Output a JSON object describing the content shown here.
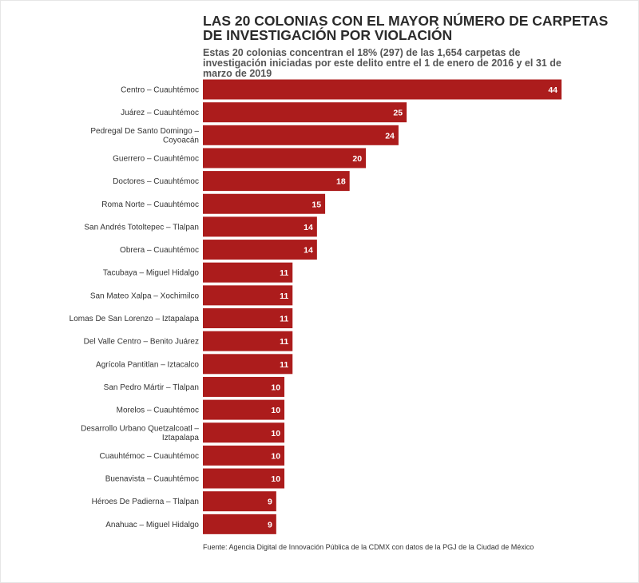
{
  "chart_data": {
    "type": "bar",
    "orientation": "horizontal",
    "title": "LAS 20 COLONIAS CON EL MAYOR NÚMERO DE CARPETAS DE INVESTIGACIÓN POR VIOLACIÓN",
    "subtitle": "Estas 20 colonias concentran el 18% (297) de las 1,654 carpetas de investigación iniciadas por este delito entre el 1 de enero de 2016 y el 31 de marzo de 2019",
    "source": "Fuente: Agencia Digital de Innovación Pública de la CDMX con datos de la PGJ de la Ciudad de México",
    "bar_color": "#ac1c1c",
    "xlim": [
      0,
      44
    ],
    "grid": false,
    "categories": [
      [
        "Centro – Cuauhtémoc"
      ],
      [
        "Juárez – Cuauhtémoc"
      ],
      [
        "Pedregal De Santo Domingo –",
        "Coyoacán"
      ],
      [
        "Guerrero – Cuauhtémoc"
      ],
      [
        "Doctores – Cuauhtémoc"
      ],
      [
        "Roma Norte – Cuauhtémoc"
      ],
      [
        "San Andrés Totoltepec – Tlalpan"
      ],
      [
        "Obrera – Cuauhtémoc"
      ],
      [
        "Tacubaya – Miguel Hidalgo"
      ],
      [
        "San Mateo Xalpa – Xochimilco"
      ],
      [
        "Lomas De San Lorenzo – Iztapalapa"
      ],
      [
        "Del Valle Centro – Benito Juárez"
      ],
      [
        "Agrícola Pantitlan – Iztacalco"
      ],
      [
        "San Pedro Mártir – Tlalpan"
      ],
      [
        "Morelos – Cuauhtémoc"
      ],
      [
        "Desarrollo Urbano Quetzalcoatl –",
        "Iztapalapa"
      ],
      [
        "Cuauhtémoc – Cuauhtémoc"
      ],
      [
        "Buenavista – Cuauhtémoc"
      ],
      [
        "Héroes De Padierna – Tlalpan"
      ],
      [
        "Anahuac – Miguel Hidalgo"
      ]
    ],
    "values": [
      44,
      25,
      24,
      20,
      18,
      15,
      14,
      14,
      11,
      11,
      11,
      11,
      11,
      10,
      10,
      10,
      10,
      10,
      9,
      9
    ]
  }
}
